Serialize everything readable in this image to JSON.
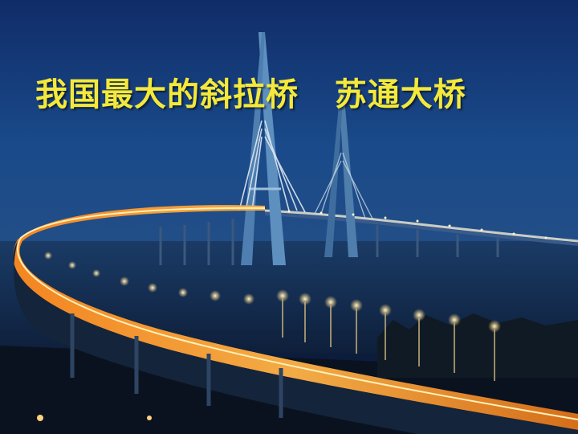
{
  "slide": {
    "title": "我国最大的斜拉桥   苏通大桥"
  },
  "colors": {
    "title_text": "#f4e93a",
    "sky_top": "#0f2e6e",
    "sky_bottom": "#1d4f8f",
    "bridge_lights": "#ff9a2e",
    "street_lamps": "#fff3c4"
  }
}
